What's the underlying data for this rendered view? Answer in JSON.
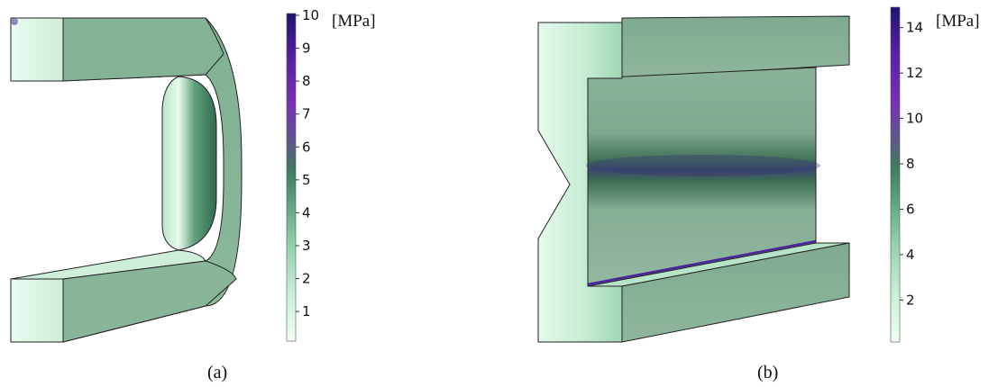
{
  "panels": [
    {
      "caption": "(a)",
      "colorbar": {
        "unit": "[MPa]",
        "ticks": [
          "1",
          "2",
          "3",
          "4",
          "5",
          "6",
          "7",
          "8",
          "9",
          "10"
        ]
      }
    },
    {
      "caption": "(b)",
      "colorbar": {
        "unit": "[MPa]",
        "ticks": [
          "2",
          "4",
          "6",
          "8",
          "10",
          "12",
          "14"
        ]
      }
    }
  ],
  "colormap": [
    "#f0fff3",
    "#c6efd5",
    "#8fcfa8",
    "#5fa37e",
    "#3f7c60",
    "#5b5a88",
    "#7a2fb6",
    "#5a1fa8",
    "#1f1470"
  ]
}
